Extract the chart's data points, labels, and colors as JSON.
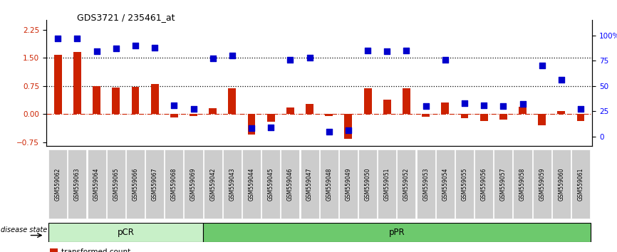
{
  "title": "GDS3721 / 235461_at",
  "samples": [
    "GSM559062",
    "GSM559063",
    "GSM559064",
    "GSM559065",
    "GSM559066",
    "GSM559067",
    "GSM559068",
    "GSM559069",
    "GSM559042",
    "GSM559043",
    "GSM559044",
    "GSM559045",
    "GSM559046",
    "GSM559047",
    "GSM559048",
    "GSM559049",
    "GSM559050",
    "GSM559051",
    "GSM559052",
    "GSM559053",
    "GSM559054",
    "GSM559055",
    "GSM559056",
    "GSM559057",
    "GSM559058",
    "GSM559059",
    "GSM559060",
    "GSM559061"
  ],
  "transformed_count": [
    1.58,
    1.65,
    0.75,
    0.7,
    0.72,
    0.8,
    -0.08,
    -0.05,
    0.15,
    0.68,
    -0.55,
    -0.2,
    0.18,
    0.27,
    -0.05,
    -0.65,
    0.68,
    0.38,
    0.68,
    -0.06,
    0.32,
    -0.1,
    -0.18,
    -0.15,
    0.2,
    -0.3,
    0.09,
    -0.18
  ],
  "percentile_rank": [
    97,
    97,
    84,
    87,
    90,
    88,
    31,
    27,
    77,
    80,
    8,
    9,
    76,
    78,
    5,
    6,
    85,
    84,
    85,
    30,
    76,
    33,
    31,
    30,
    32,
    70,
    56,
    27
  ],
  "pcr_count": 8,
  "bar_color": "#cc2200",
  "dot_color": "#0000cc",
  "ylim_left": [
    -0.85,
    2.5
  ],
  "ylim_right": [
    -9.5,
    115
  ],
  "yticks_left": [
    -0.75,
    0,
    0.75,
    1.5,
    2.25
  ],
  "yticks_right": [
    0,
    25,
    50,
    75,
    100
  ],
  "hline_y": [
    1.5,
    0.75
  ],
  "pcr_color": "#c8f0c8",
  "ppr_color": "#6dc96d",
  "tick_bg_color": "#cccccc"
}
